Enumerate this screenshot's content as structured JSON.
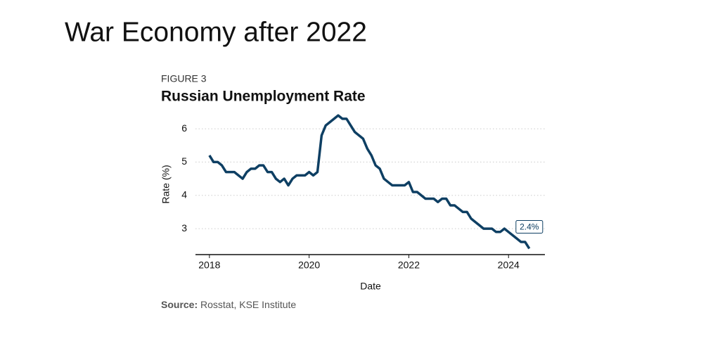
{
  "slide_title": "War Economy after 2022",
  "chart_data": {
    "type": "line",
    "figure_label": "FIGURE 3",
    "title": "Russian Unemployment Rate",
    "x_label": "Date",
    "y_label": "Rate (%)",
    "source_label": "Source:",
    "source": "Rosstat, KSE Institute",
    "color": "#0e3f63",
    "grid": true,
    "xlim": [
      2017.72,
      2024.73
    ],
    "xticks": [
      2018,
      2020,
      2022,
      2024
    ],
    "ylim": [
      2.22,
      6.5
    ],
    "yticks": [
      3,
      4,
      5,
      6
    ],
    "x": [
      2018,
      2018.083,
      2018.167,
      2018.25,
      2018.333,
      2018.417,
      2018.5,
      2018.583,
      2018.667,
      2018.75,
      2018.833,
      2018.917,
      2019,
      2019.083,
      2019.167,
      2019.25,
      2019.333,
      2019.417,
      2019.5,
      2019.583,
      2019.667,
      2019.75,
      2019.833,
      2019.917,
      2020,
      2020.083,
      2020.167,
      2020.25,
      2020.333,
      2020.417,
      2020.5,
      2020.583,
      2020.667,
      2020.75,
      2020.833,
      2020.917,
      2021,
      2021.083,
      2021.167,
      2021.25,
      2021.333,
      2021.417,
      2021.5,
      2021.583,
      2021.667,
      2021.75,
      2021.833,
      2021.917,
      2022,
      2022.083,
      2022.167,
      2022.25,
      2022.333,
      2022.417,
      2022.5,
      2022.583,
      2022.667,
      2022.75,
      2022.833,
      2022.917,
      2023,
      2023.083,
      2023.167,
      2023.25,
      2023.333,
      2023.417,
      2023.5,
      2023.583,
      2023.667,
      2023.75,
      2023.833,
      2023.917,
      2024,
      2024.083,
      2024.167,
      2024.25,
      2024.333,
      2024.417
    ],
    "values": [
      5.2,
      5.0,
      5.0,
      4.9,
      4.7,
      4.7,
      4.7,
      4.6,
      4.5,
      4.7,
      4.8,
      4.8,
      4.9,
      4.9,
      4.7,
      4.7,
      4.5,
      4.4,
      4.5,
      4.3,
      4.5,
      4.6,
      4.6,
      4.6,
      4.7,
      4.6,
      4.7,
      5.8,
      6.1,
      6.2,
      6.3,
      6.4,
      6.3,
      6.3,
      6.1,
      5.9,
      5.8,
      5.7,
      5.4,
      5.2,
      4.9,
      4.8,
      4.5,
      4.4,
      4.3,
      4.3,
      4.3,
      4.3,
      4.4,
      4.1,
      4.1,
      4.0,
      3.9,
      3.9,
      3.9,
      3.8,
      3.9,
      3.9,
      3.7,
      3.7,
      3.6,
      3.5,
      3.5,
      3.3,
      3.2,
      3.1,
      3.0,
      3.0,
      3.0,
      2.9,
      2.9,
      3.0,
      2.9,
      2.8,
      2.7,
      2.6,
      2.6,
      2.4
    ],
    "value_labels": [
      null,
      null,
      null,
      null,
      null,
      null,
      null,
      null,
      null,
      null,
      null,
      null,
      null,
      null,
      null,
      null,
      null,
      null,
      null,
      null,
      null,
      null,
      null,
      null,
      null,
      null,
      null,
      null,
      null,
      null,
      null,
      null,
      null,
      null,
      null,
      null,
      null,
      null,
      null,
      null,
      null,
      null,
      null,
      null,
      null,
      null,
      null,
      null,
      null,
      null,
      null,
      null,
      null,
      null,
      null,
      null,
      null,
      null,
      null,
      null,
      null,
      null,
      null,
      null,
      null,
      null,
      null,
      null,
      null,
      null,
      null,
      null,
      null,
      null,
      null,
      null,
      null,
      "2.4%"
    ]
  }
}
